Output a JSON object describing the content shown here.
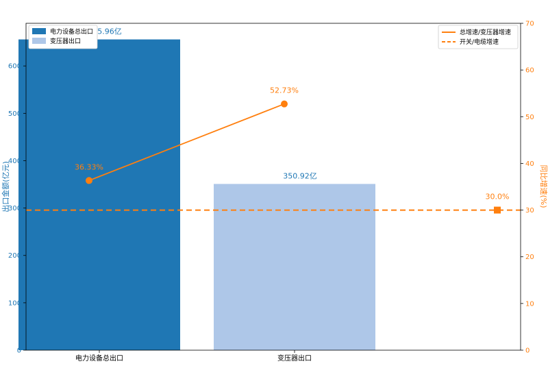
{
  "chart_data": {
    "type": "bar",
    "categories": [
      "电力设备总出口",
      "变压器出口"
    ],
    "bar_series": [
      {
        "name": "电力设备总出口",
        "value": 655.96,
        "label": "655.96亿",
        "color": "#1f77b4"
      },
      {
        "name": "变压器出口",
        "value": 350.92,
        "label": "350.92亿",
        "color": "#aec7e8"
      }
    ],
    "line_series": {
      "name": "总增速/变压器增速",
      "color": "#ff7f0e",
      "values": [
        36.33,
        52.73
      ],
      "labels": [
        "36.33%",
        "52.73%"
      ]
    },
    "ref_line": {
      "name": "开关/电缆增速",
      "color": "#ff7f0e",
      "value": 30.0,
      "label": "30.0%"
    },
    "y_left": {
      "label": "出口金额(亿元)",
      "lim": [
        0,
        690
      ],
      "ticks": [
        "0",
        "100",
        "200",
        "300",
        "400",
        "500",
        "600"
      ],
      "color": "#1f77b4"
    },
    "y_right": {
      "label": "同比增速(%)",
      "lim": [
        0,
        70
      ],
      "ticks": [
        "0",
        "10",
        "20",
        "30",
        "40",
        "50",
        "60",
        "70"
      ],
      "color": "#ff7f0e"
    },
    "legend_left_placement": "top-left",
    "legend_right_placement": "top-right",
    "grid": false
  }
}
